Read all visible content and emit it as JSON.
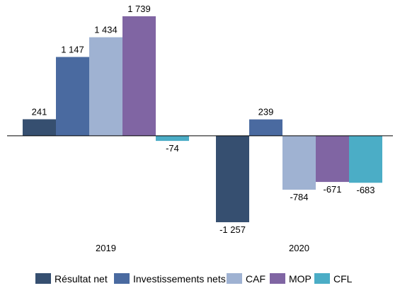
{
  "chart_data": {
    "type": "bar",
    "categories": [
      "2019",
      "2020"
    ],
    "series": [
      {
        "name": "Résultat net",
        "color": "#364f70",
        "values": [
          241,
          -1257
        ],
        "labels": [
          "241",
          "-1 257"
        ]
      },
      {
        "name": "Investissements nets",
        "color": "#4a6aa0",
        "values": [
          1147,
          239
        ],
        "labels": [
          "1 147",
          "239"
        ]
      },
      {
        "name": "CAF",
        "color": "#9fb2d2",
        "values": [
          1434,
          -784
        ],
        "labels": [
          "1 434",
          "-784"
        ]
      },
      {
        "name": "MOP",
        "color": "#8065a3",
        "values": [
          1739,
          -671
        ],
        "labels": [
          "1 739",
          "-671"
        ]
      },
      {
        "name": "CFL",
        "color": "#4badc6",
        "values": [
          -74,
          -683
        ],
        "labels": [
          "-74",
          "-683"
        ]
      }
    ],
    "ylim": [
      -1257,
      1739
    ],
    "grid": false,
    "legend_position": "bottom"
  }
}
